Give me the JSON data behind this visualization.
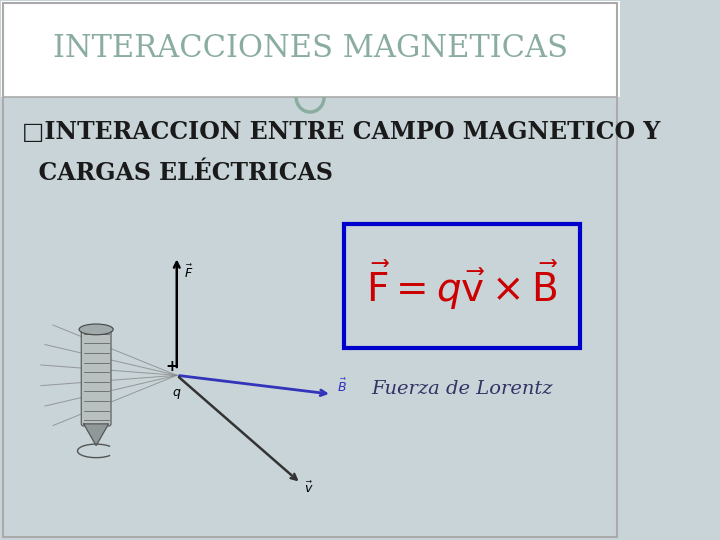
{
  "title": "INTERACCIONES MAGNETICAS",
  "title_color": "#8aada0",
  "title_fontsize": 22,
  "bg_color": "#c8d4d8",
  "header_bg": "#ffffff",
  "subtitle_line1": "□INTERACCION ENTRE CAMPO MAGNETICO Y",
  "subtitle_line2": "  CARGAS ELÉCTRICAS",
  "subtitle_color": "#1a1a1a",
  "subtitle_fontsize": 17,
  "formula_color": "#cc0000",
  "formula_fontsize": 28,
  "formula_box_color": "#0000cc",
  "lorentz_text": "Fuerza de Lorentz",
  "lorentz_color": "#333366",
  "lorentz_fontsize": 14,
  "circle_color": "#8aada0"
}
